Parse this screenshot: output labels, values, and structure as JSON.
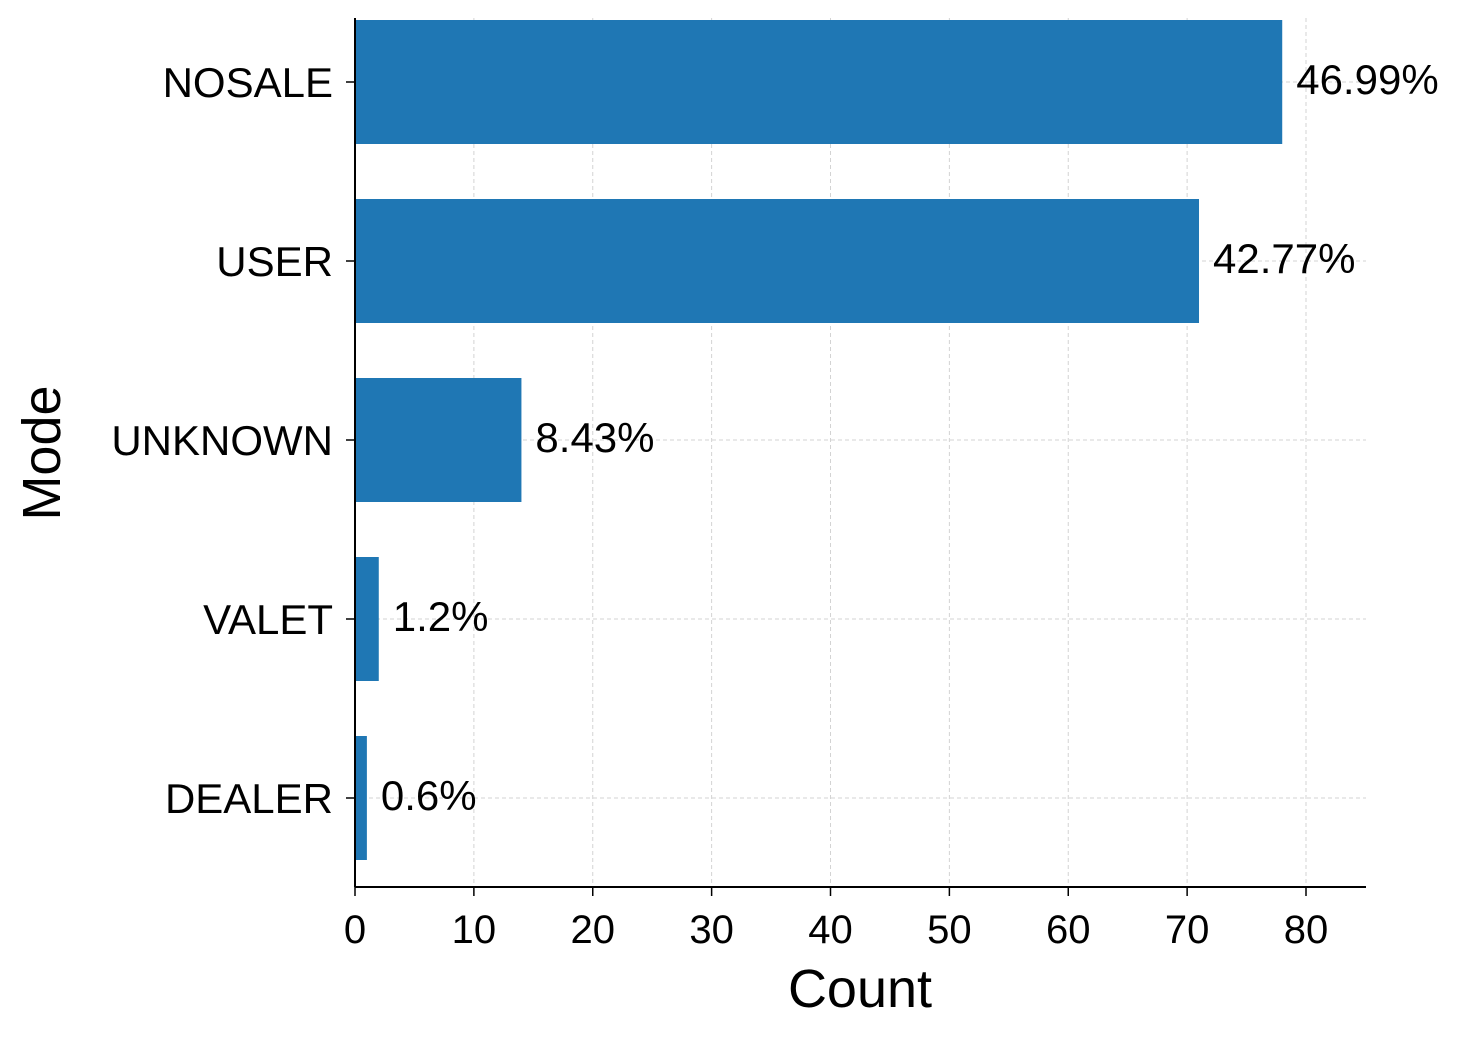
{
  "chart_data": {
    "type": "bar",
    "orientation": "horizontal",
    "categories": [
      "NOSALE",
      "USER",
      "UNKNOWN",
      "VALET",
      "DEALER"
    ],
    "values": [
      78,
      71,
      14,
      2,
      1
    ],
    "data_labels": [
      "46.99%",
      "42.77%",
      "8.43%",
      "1.2%",
      "0.6%"
    ],
    "xlabel": "Count",
    "ylabel": "Mode",
    "xlim": [
      0,
      85
    ],
    "xticks": [
      0,
      10,
      20,
      30,
      40,
      50,
      60,
      70,
      80
    ],
    "grid": true,
    "bar_color": "#1f77b4"
  }
}
